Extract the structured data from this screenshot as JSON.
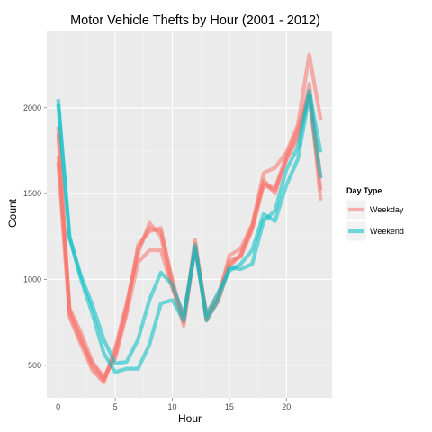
{
  "chart_data": {
    "type": "line",
    "title": "Motor Vehicle Thefts by Hour (2001 - 2012)",
    "xlabel": "Hour",
    "ylabel": "Count",
    "xlim": [
      -1,
      24
    ],
    "ylim": [
      310,
      2450
    ],
    "x_ticks": [
      0,
      5,
      10,
      15,
      20
    ],
    "y_ticks": [
      500,
      1000,
      1500,
      2000
    ],
    "grid": true,
    "legend": {
      "title": "Day Type",
      "position": "right",
      "entries": [
        {
          "label": "Weekday",
          "color": "#F8766D"
        },
        {
          "label": "Weekend",
          "color": "#00BFC4"
        }
      ]
    },
    "hours": [
      0,
      1,
      2,
      3,
      4,
      5,
      6,
      7,
      8,
      9,
      10,
      11,
      12,
      13,
      14,
      15,
      16,
      17,
      18,
      19,
      20,
      21,
      22,
      23
    ],
    "series": [
      {
        "group": "Weekday",
        "color": "#F8766D",
        "values": [
          1890,
          800,
          640,
          510,
          420,
          560,
          820,
          1200,
          1280,
          1300,
          980,
          760,
          1210,
          780,
          880,
          1140,
          1180,
          1320,
          1620,
          1650,
          1740,
          1900,
          2310,
          1930
        ]
      },
      {
        "group": "Weekday",
        "color": "#F8766D",
        "values": [
          1850,
          820,
          660,
          490,
          410,
          600,
          860,
          1150,
          1330,
          1250,
          960,
          730,
          1190,
          760,
          890,
          1090,
          1140,
          1300,
          1580,
          1500,
          1700,
          1820,
          2140,
          1460
        ]
      },
      {
        "group": "Weekday",
        "color": "#F8766D",
        "values": [
          1720,
          830,
          690,
          520,
          430,
          540,
          800,
          1100,
          1170,
          1170,
          950,
          790,
          1180,
          800,
          910,
          1110,
          1130,
          1290,
          1550,
          1520,
          1700,
          1850,
          2060,
          1520
        ]
      },
      {
        "group": "Weekday",
        "color": "#F8766D",
        "values": [
          1680,
          780,
          620,
          470,
          400,
          580,
          850,
          1180,
          1300,
          1280,
          1000,
          750,
          1230,
          770,
          870,
          1070,
          1150,
          1310,
          1560,
          1530,
          1720,
          1880,
          2090,
          1590
        ]
      },
      {
        "group": "Weekend",
        "color": "#00BFC4",
        "values": [
          2050,
          1250,
          1000,
          800,
          570,
          460,
          480,
          480,
          620,
          860,
          880,
          760,
          1200,
          760,
          880,
          1070,
          1060,
          1090,
          1340,
          1400,
          1640,
          1770,
          2100,
          1740
        ]
      },
      {
        "group": "Weekend",
        "color": "#00BFC4",
        "values": [
          2020,
          1240,
          1020,
          850,
          650,
          510,
          520,
          650,
          880,
          1040,
          970,
          790,
          1180,
          790,
          920,
          1050,
          1090,
          1170,
          1380,
          1340,
          1550,
          1700,
          2070,
          1590
        ]
      }
    ]
  }
}
